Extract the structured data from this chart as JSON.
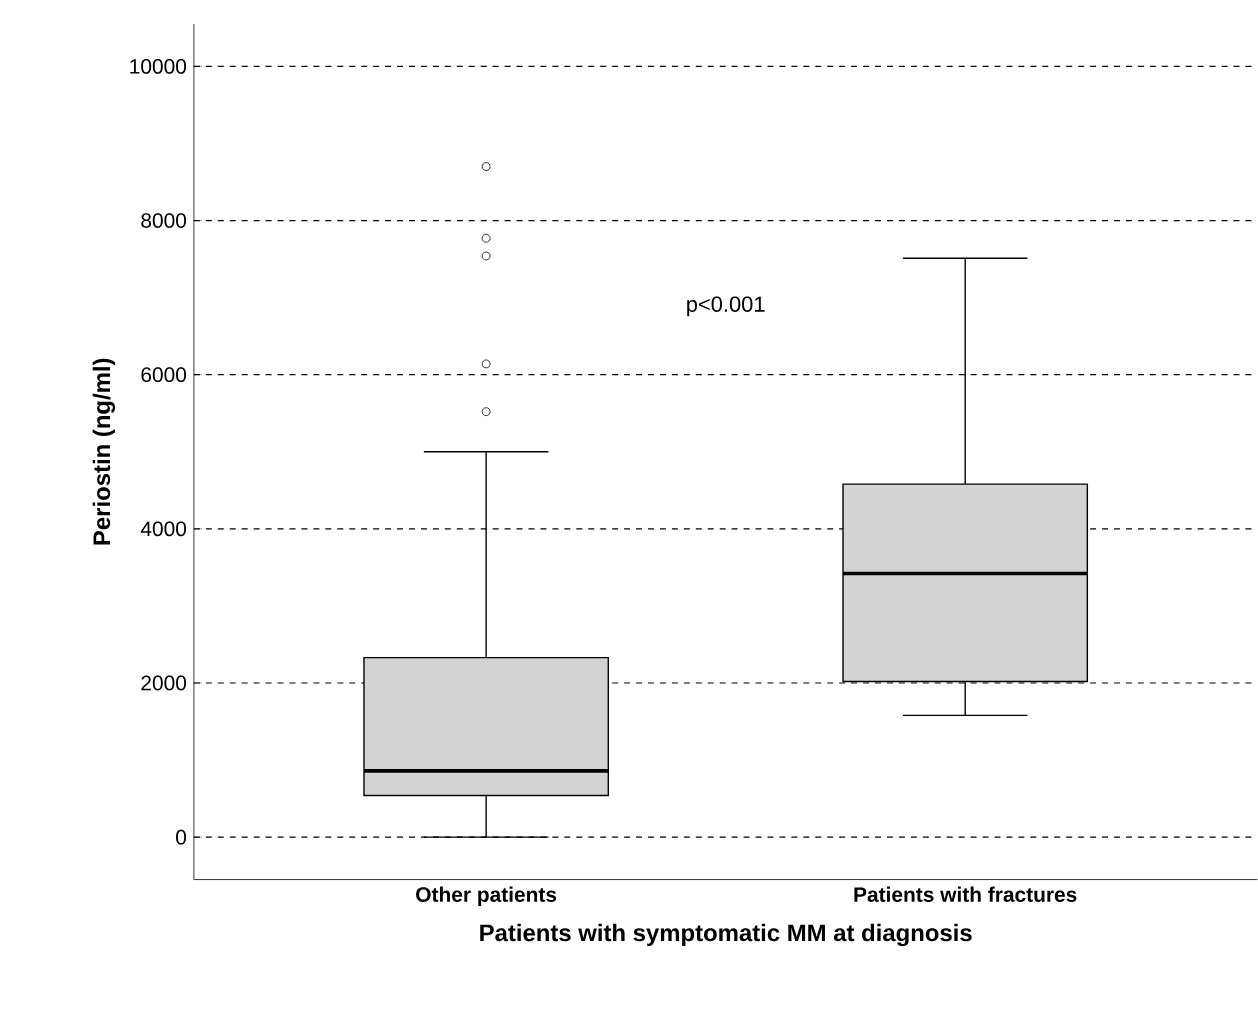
{
  "chart_data": {
    "type": "box",
    "categories": [
      "Other patients",
      "Patients with fractures"
    ],
    "boxes": [
      {
        "low": 0,
        "q1": 540,
        "median": 860,
        "q3": 2330,
        "high": 5000,
        "outliers": [
          5520,
          6140,
          7540,
          7770,
          8700
        ]
      },
      {
        "low": 1580,
        "q1": 2020,
        "median": 3420,
        "q3": 4580,
        "high": 7510
      }
    ],
    "color": "#d3d3d3",
    "xlabel": "Patients with symptomatic MM at diagnosis",
    "ylabel": "Periostin (ng/ml)",
    "ylim": [
      -550,
      10550
    ],
    "yticks": [
      0,
      2000,
      4000,
      6000,
      8000,
      10000
    ],
    "grid": "y",
    "annotations": [
      "p<0.001"
    ]
  }
}
